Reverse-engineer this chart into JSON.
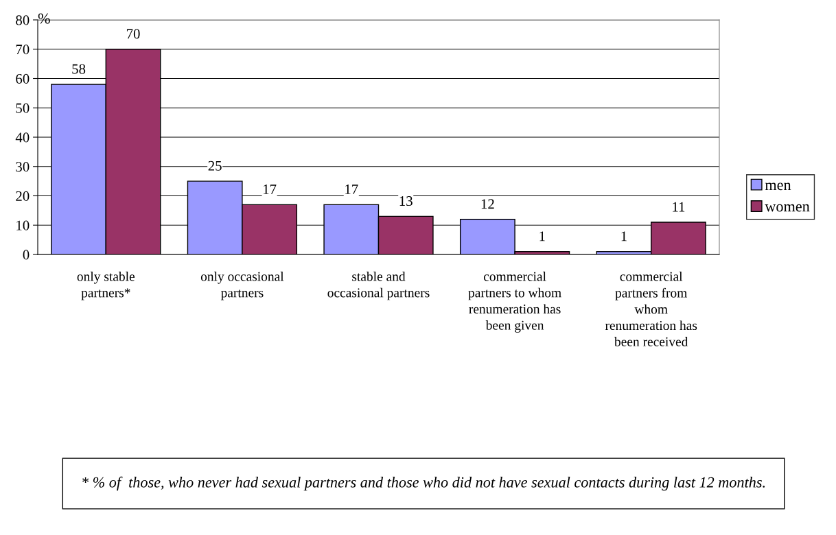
{
  "chart_data": {
    "type": "bar",
    "ylabel": "%",
    "categories": [
      "only stable\npartners*",
      "only occasional\npartners",
      "stable and\noccasional partners",
      "commercial\npartners to whom\nrenumeration has\nbeen given",
      "commercial\npartners from\nwhom\nrenumeration has\nbeen received"
    ],
    "series": [
      {
        "name": "men",
        "color": "#9999ff",
        "values": [
          58,
          25,
          17,
          12,
          1
        ]
      },
      {
        "name": "women",
        "color": "#993366",
        "values": [
          70,
          17,
          13,
          1,
          11
        ]
      }
    ],
    "ylim": [
      0,
      80
    ],
    "yticks": [
      0,
      10,
      20,
      30,
      40,
      50,
      60,
      70,
      80
    ],
    "grid": "y",
    "legend": "right",
    "data_labels": true,
    "annotations": [
      "* % of  those, who never had sexual partners and those who did not have sexual contacts during last 12 months."
    ]
  }
}
